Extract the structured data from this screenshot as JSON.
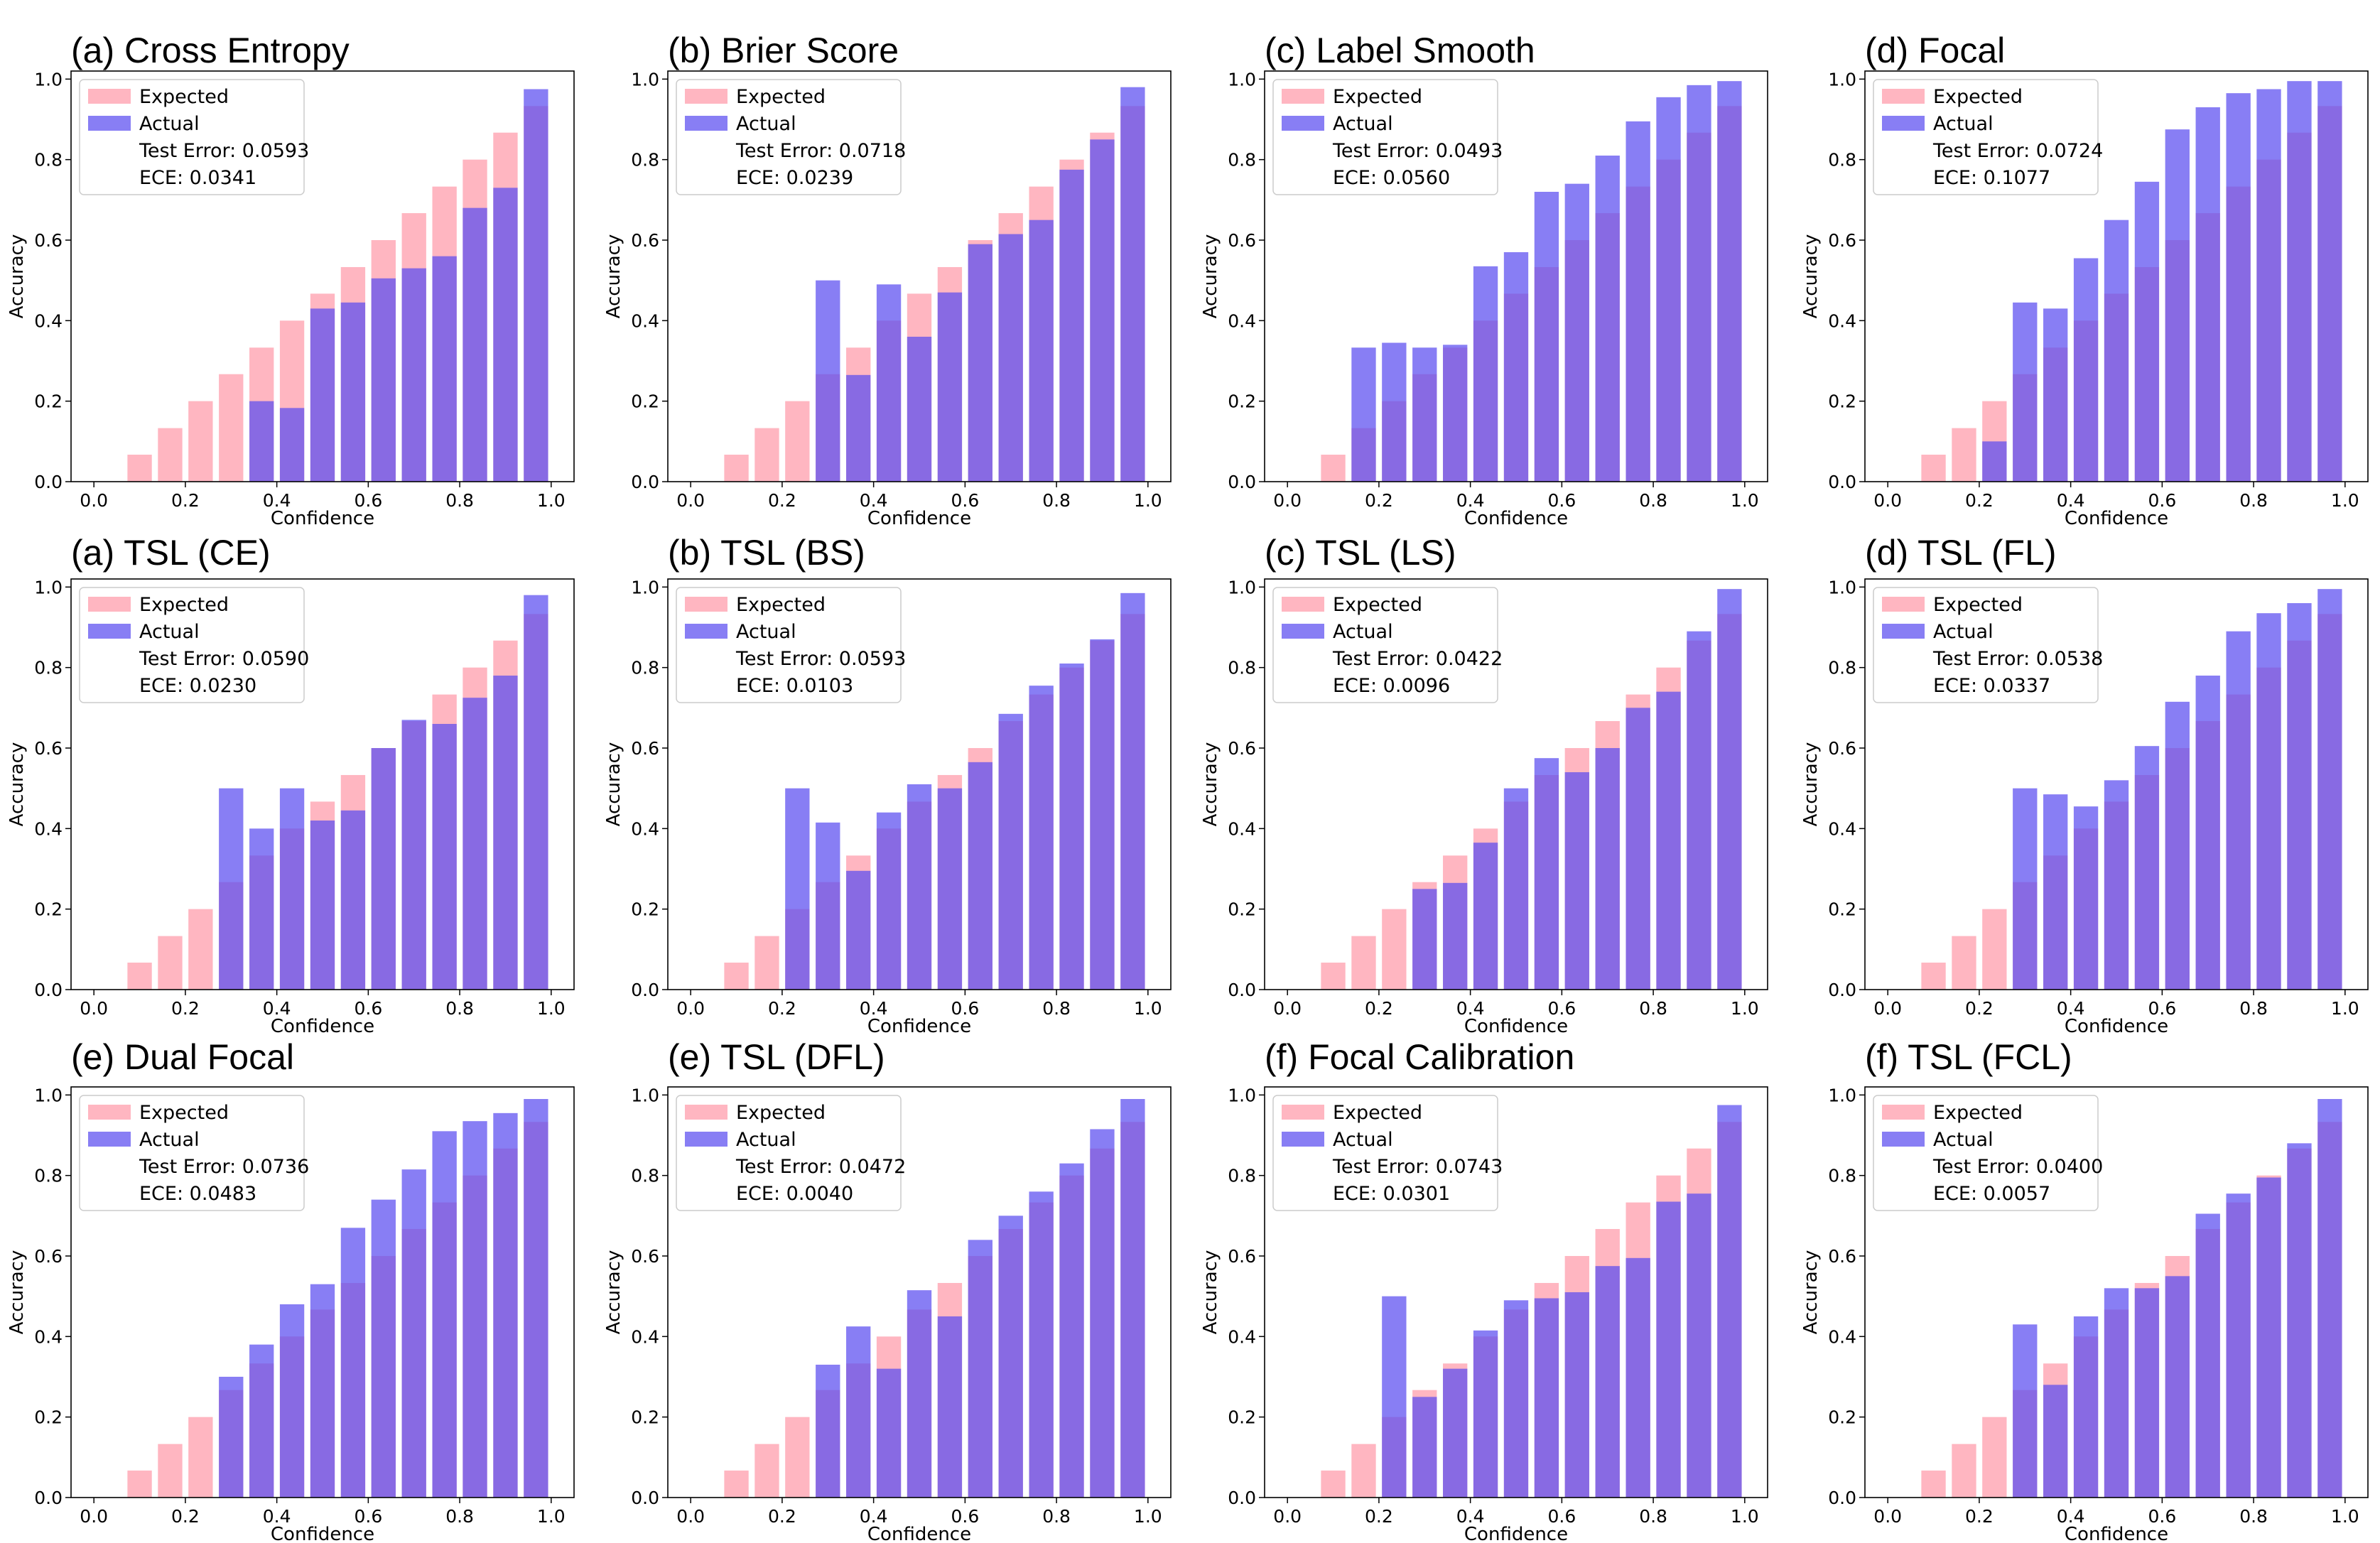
{
  "colors": {
    "expected": "#ffb6c1",
    "actual": "#5a4cf0",
    "axis": "#000000",
    "legend_border": "#cccccc"
  },
  "legend_labels": {
    "expected": "Expected",
    "actual": "Actual"
  },
  "chart_data": [
    {
      "type": "bar",
      "title": "(a) Cross Entropy",
      "xlabel": "Confidence",
      "ylabel": "Accuracy",
      "xlim": [
        -0.05,
        1.05
      ],
      "ylim": [
        0,
        1.02
      ],
      "xticks": [
        "0.0",
        "0.2",
        "0.4",
        "0.6",
        "0.8",
        "1.0"
      ],
      "yticks": [
        "0.0",
        "0.2",
        "0.4",
        "0.6",
        "0.8",
        "1.0"
      ],
      "bin_centers": [
        0.0333,
        0.1,
        0.1667,
        0.2333,
        0.3,
        0.3667,
        0.4333,
        0.5,
        0.5667,
        0.6333,
        0.7,
        0.7667,
        0.8333,
        0.9,
        0.9667
      ],
      "series": [
        {
          "name": "Expected",
          "values": [
            0.0,
            0.067,
            0.133,
            0.2,
            0.267,
            0.333,
            0.4,
            0.467,
            0.533,
            0.6,
            0.667,
            0.733,
            0.8,
            0.867,
            0.933
          ]
        },
        {
          "name": "Actual",
          "values": [
            0,
            0,
            0,
            0,
            0,
            0.2,
            0.183,
            0.43,
            0.445,
            0.505,
            0.53,
            0.56,
            0.68,
            0.73,
            0.975
          ]
        }
      ],
      "legend_stats": [
        "Test Error: 0.0593",
        "ECE: 0.0341"
      ]
    },
    {
      "type": "bar",
      "title": "(b) Brier Score",
      "xlabel": "Confidence",
      "ylabel": "Accuracy",
      "xlim": [
        -0.05,
        1.05
      ],
      "ylim": [
        0,
        1.02
      ],
      "xticks": [
        "0.0",
        "0.2",
        "0.4",
        "0.6",
        "0.8",
        "1.0"
      ],
      "yticks": [
        "0.0",
        "0.2",
        "0.4",
        "0.6",
        "0.8",
        "1.0"
      ],
      "bin_centers": [
        0.0333,
        0.1,
        0.1667,
        0.2333,
        0.3,
        0.3667,
        0.4333,
        0.5,
        0.5667,
        0.6333,
        0.7,
        0.7667,
        0.8333,
        0.9,
        0.9667
      ],
      "series": [
        {
          "name": "Expected",
          "values": [
            0.0,
            0.067,
            0.133,
            0.2,
            0.267,
            0.333,
            0.4,
            0.467,
            0.533,
            0.6,
            0.667,
            0.733,
            0.8,
            0.867,
            0.933
          ]
        },
        {
          "name": "Actual",
          "values": [
            0,
            0,
            0,
            0,
            0.5,
            0.265,
            0.49,
            0.36,
            0.47,
            0.59,
            0.615,
            0.65,
            0.775,
            0.85,
            0.98
          ]
        }
      ],
      "legend_stats": [
        "Test Error: 0.0718",
        "ECE: 0.0239"
      ]
    },
    {
      "type": "bar",
      "title": "(c) Label Smooth",
      "xlabel": "Confidence",
      "ylabel": "Accuracy",
      "xlim": [
        -0.05,
        1.05
      ],
      "ylim": [
        0,
        1.02
      ],
      "xticks": [
        "0.0",
        "0.2",
        "0.4",
        "0.6",
        "0.8",
        "1.0"
      ],
      "yticks": [
        "0.0",
        "0.2",
        "0.4",
        "0.6",
        "0.8",
        "1.0"
      ],
      "bin_centers": [
        0.0333,
        0.1,
        0.1667,
        0.2333,
        0.3,
        0.3667,
        0.4333,
        0.5,
        0.5667,
        0.6333,
        0.7,
        0.7667,
        0.8333,
        0.9,
        0.9667
      ],
      "series": [
        {
          "name": "Expected",
          "values": [
            0.0,
            0.067,
            0.133,
            0.2,
            0.267,
            0.333,
            0.4,
            0.467,
            0.533,
            0.6,
            0.667,
            0.733,
            0.8,
            0.867,
            0.933
          ]
        },
        {
          "name": "Actual",
          "values": [
            0,
            0,
            0.333,
            0.345,
            0.333,
            0.34,
            0.535,
            0.57,
            0.72,
            0.74,
            0.81,
            0.895,
            0.955,
            0.985,
            0.995
          ]
        }
      ],
      "legend_stats": [
        "Test Error: 0.0493",
        "ECE: 0.0560"
      ]
    },
    {
      "type": "bar",
      "title": "(d) Focal",
      "xlabel": "Confidence",
      "ylabel": "Accuracy",
      "xlim": [
        -0.05,
        1.05
      ],
      "ylim": [
        0,
        1.02
      ],
      "xticks": [
        "0.0",
        "0.2",
        "0.4",
        "0.6",
        "0.8",
        "1.0"
      ],
      "yticks": [
        "0.0",
        "0.2",
        "0.4",
        "0.6",
        "0.8",
        "1.0"
      ],
      "bin_centers": [
        0.0333,
        0.1,
        0.1667,
        0.2333,
        0.3,
        0.3667,
        0.4333,
        0.5,
        0.5667,
        0.6333,
        0.7,
        0.7667,
        0.8333,
        0.9,
        0.9667
      ],
      "series": [
        {
          "name": "Expected",
          "values": [
            0.0,
            0.067,
            0.133,
            0.2,
            0.267,
            0.333,
            0.4,
            0.467,
            0.533,
            0.6,
            0.667,
            0.733,
            0.8,
            0.867,
            0.933
          ]
        },
        {
          "name": "Actual",
          "values": [
            0,
            0,
            0,
            0.1,
            0.445,
            0.43,
            0.555,
            0.65,
            0.745,
            0.875,
            0.93,
            0.965,
            0.975,
            0.995,
            0.995
          ]
        }
      ],
      "legend_stats": [
        "Test Error: 0.0724",
        "ECE: 0.1077"
      ]
    },
    {
      "type": "bar",
      "title": "(a) TSL (CE)",
      "xlabel": "Confidence",
      "ylabel": "Accuracy",
      "xlim": [
        -0.05,
        1.05
      ],
      "ylim": [
        0,
        1.02
      ],
      "xticks": [
        "0.0",
        "0.2",
        "0.4",
        "0.6",
        "0.8",
        "1.0"
      ],
      "yticks": [
        "0.0",
        "0.2",
        "0.4",
        "0.6",
        "0.8",
        "1.0"
      ],
      "bin_centers": [
        0.0333,
        0.1,
        0.1667,
        0.2333,
        0.3,
        0.3667,
        0.4333,
        0.5,
        0.5667,
        0.6333,
        0.7,
        0.7667,
        0.8333,
        0.9,
        0.9667
      ],
      "series": [
        {
          "name": "Expected",
          "values": [
            0.0,
            0.067,
            0.133,
            0.2,
            0.267,
            0.333,
            0.4,
            0.467,
            0.533,
            0.6,
            0.667,
            0.733,
            0.8,
            0.867,
            0.933
          ]
        },
        {
          "name": "Actual",
          "values": [
            0,
            0,
            0,
            0,
            0.5,
            0.4,
            0.5,
            0.42,
            0.445,
            0.6,
            0.67,
            0.66,
            0.725,
            0.78,
            0.98
          ]
        }
      ],
      "legend_stats": [
        "Test Error: 0.0590",
        "ECE: 0.0230"
      ]
    },
    {
      "type": "bar",
      "title": "(b) TSL (BS)",
      "xlabel": "Confidence",
      "ylabel": "Accuracy",
      "xlim": [
        -0.05,
        1.05
      ],
      "ylim": [
        0,
        1.02
      ],
      "xticks": [
        "0.0",
        "0.2",
        "0.4",
        "0.6",
        "0.8",
        "1.0"
      ],
      "yticks": [
        "0.0",
        "0.2",
        "0.4",
        "0.6",
        "0.8",
        "1.0"
      ],
      "bin_centers": [
        0.0333,
        0.1,
        0.1667,
        0.2333,
        0.3,
        0.3667,
        0.4333,
        0.5,
        0.5667,
        0.6333,
        0.7,
        0.7667,
        0.8333,
        0.9,
        0.9667
      ],
      "series": [
        {
          "name": "Expected",
          "values": [
            0.0,
            0.067,
            0.133,
            0.2,
            0.267,
            0.333,
            0.4,
            0.467,
            0.533,
            0.6,
            0.667,
            0.733,
            0.8,
            0.867,
            0.933
          ]
        },
        {
          "name": "Actual",
          "values": [
            0,
            0,
            0,
            0.5,
            0.415,
            0.295,
            0.44,
            0.51,
            0.5,
            0.565,
            0.685,
            0.755,
            0.81,
            0.87,
            0.985
          ]
        }
      ],
      "legend_stats": [
        "Test Error: 0.0593",
        "ECE: 0.0103"
      ]
    },
    {
      "type": "bar",
      "title": "(c) TSL (LS)",
      "xlabel": "Confidence",
      "ylabel": "Accuracy",
      "xlim": [
        -0.05,
        1.05
      ],
      "ylim": [
        0,
        1.02
      ],
      "xticks": [
        "0.0",
        "0.2",
        "0.4",
        "0.6",
        "0.8",
        "1.0"
      ],
      "yticks": [
        "0.0",
        "0.2",
        "0.4",
        "0.6",
        "0.8",
        "1.0"
      ],
      "bin_centers": [
        0.0333,
        0.1,
        0.1667,
        0.2333,
        0.3,
        0.3667,
        0.4333,
        0.5,
        0.5667,
        0.6333,
        0.7,
        0.7667,
        0.8333,
        0.9,
        0.9667
      ],
      "series": [
        {
          "name": "Expected",
          "values": [
            0.0,
            0.067,
            0.133,
            0.2,
            0.267,
            0.333,
            0.4,
            0.467,
            0.533,
            0.6,
            0.667,
            0.733,
            0.8,
            0.867,
            0.933
          ]
        },
        {
          "name": "Actual",
          "values": [
            0,
            0,
            0,
            0,
            0.25,
            0.265,
            0.365,
            0.5,
            0.575,
            0.54,
            0.6,
            0.7,
            0.74,
            0.89,
            0.995
          ]
        }
      ],
      "legend_stats": [
        "Test Error: 0.0422",
        "ECE: 0.0096"
      ]
    },
    {
      "type": "bar",
      "title": "(d) TSL (FL)",
      "xlabel": "Confidence",
      "ylabel": "Accuracy",
      "xlim": [
        -0.05,
        1.05
      ],
      "ylim": [
        0,
        1.02
      ],
      "xticks": [
        "0.0",
        "0.2",
        "0.4",
        "0.6",
        "0.8",
        "1.0"
      ],
      "yticks": [
        "0.0",
        "0.2",
        "0.4",
        "0.6",
        "0.8",
        "1.0"
      ],
      "bin_centers": [
        0.0333,
        0.1,
        0.1667,
        0.2333,
        0.3,
        0.3667,
        0.4333,
        0.5,
        0.5667,
        0.6333,
        0.7,
        0.7667,
        0.8333,
        0.9,
        0.9667
      ],
      "series": [
        {
          "name": "Expected",
          "values": [
            0.0,
            0.067,
            0.133,
            0.2,
            0.267,
            0.333,
            0.4,
            0.467,
            0.533,
            0.6,
            0.667,
            0.733,
            0.8,
            0.867,
            0.933
          ]
        },
        {
          "name": "Actual",
          "values": [
            0,
            0,
            0,
            0,
            0.5,
            0.485,
            0.455,
            0.52,
            0.605,
            0.715,
            0.78,
            0.89,
            0.935,
            0.96,
            0.995
          ]
        }
      ],
      "legend_stats": [
        "Test Error: 0.0538",
        "ECE: 0.0337"
      ]
    },
    {
      "type": "bar",
      "title": "(e) Dual Focal",
      "xlabel": "Confidence",
      "ylabel": "Accuracy",
      "xlim": [
        -0.05,
        1.05
      ],
      "ylim": [
        0,
        1.02
      ],
      "xticks": [
        "0.0",
        "0.2",
        "0.4",
        "0.6",
        "0.8",
        "1.0"
      ],
      "yticks": [
        "0.0",
        "0.2",
        "0.4",
        "0.6",
        "0.8",
        "1.0"
      ],
      "bin_centers": [
        0.0333,
        0.1,
        0.1667,
        0.2333,
        0.3,
        0.3667,
        0.4333,
        0.5,
        0.5667,
        0.6333,
        0.7,
        0.7667,
        0.8333,
        0.9,
        0.9667
      ],
      "series": [
        {
          "name": "Expected",
          "values": [
            0.0,
            0.067,
            0.133,
            0.2,
            0.267,
            0.333,
            0.4,
            0.467,
            0.533,
            0.6,
            0.667,
            0.733,
            0.8,
            0.867,
            0.933
          ]
        },
        {
          "name": "Actual",
          "values": [
            0,
            0,
            0,
            0,
            0.3,
            0.38,
            0.48,
            0.53,
            0.67,
            0.74,
            0.815,
            0.91,
            0.935,
            0.955,
            0.99
          ]
        }
      ],
      "legend_stats": [
        "Test Error: 0.0736",
        "ECE: 0.0483"
      ]
    },
    {
      "type": "bar",
      "title": "(e) TSL (DFL)",
      "xlabel": "Confidence",
      "ylabel": "Accuracy",
      "xlim": [
        -0.05,
        1.05
      ],
      "ylim": [
        0,
        1.02
      ],
      "xticks": [
        "0.0",
        "0.2",
        "0.4",
        "0.6",
        "0.8",
        "1.0"
      ],
      "yticks": [
        "0.0",
        "0.2",
        "0.4",
        "0.6",
        "0.8",
        "1.0"
      ],
      "bin_centers": [
        0.0333,
        0.1,
        0.1667,
        0.2333,
        0.3,
        0.3667,
        0.4333,
        0.5,
        0.5667,
        0.6333,
        0.7,
        0.7667,
        0.8333,
        0.9,
        0.9667
      ],
      "series": [
        {
          "name": "Expected",
          "values": [
            0.0,
            0.067,
            0.133,
            0.2,
            0.267,
            0.333,
            0.4,
            0.467,
            0.533,
            0.6,
            0.667,
            0.733,
            0.8,
            0.867,
            0.933
          ]
        },
        {
          "name": "Actual",
          "values": [
            0,
            0,
            0,
            0,
            0.33,
            0.425,
            0.32,
            0.515,
            0.45,
            0.64,
            0.7,
            0.76,
            0.83,
            0.915,
            0.99
          ]
        }
      ],
      "legend_stats": [
        "Test Error: 0.0472",
        "ECE: 0.0040"
      ]
    },
    {
      "type": "bar",
      "title": "(f) Focal Calibration",
      "xlabel": "Confidence",
      "ylabel": "Accuracy",
      "xlim": [
        -0.05,
        1.05
      ],
      "ylim": [
        0,
        1.02
      ],
      "xticks": [
        "0.0",
        "0.2",
        "0.4",
        "0.6",
        "0.8",
        "1.0"
      ],
      "yticks": [
        "0.0",
        "0.2",
        "0.4",
        "0.6",
        "0.8",
        "1.0"
      ],
      "bin_centers": [
        0.0333,
        0.1,
        0.1667,
        0.2333,
        0.3,
        0.3667,
        0.4333,
        0.5,
        0.5667,
        0.6333,
        0.7,
        0.7667,
        0.8333,
        0.9,
        0.9667
      ],
      "series": [
        {
          "name": "Expected",
          "values": [
            0.0,
            0.067,
            0.133,
            0.2,
            0.267,
            0.333,
            0.4,
            0.467,
            0.533,
            0.6,
            0.667,
            0.733,
            0.8,
            0.867,
            0.933
          ]
        },
        {
          "name": "Actual",
          "values": [
            0,
            0,
            0,
            0.5,
            0.25,
            0.32,
            0.415,
            0.49,
            0.495,
            0.51,
            0.575,
            0.595,
            0.735,
            0.755,
            0.975
          ]
        }
      ],
      "legend_stats": [
        "Test Error: 0.0743",
        "ECE: 0.0301"
      ]
    },
    {
      "type": "bar",
      "title": "(f) TSL (FCL)",
      "xlabel": "Confidence",
      "ylabel": "Accuracy",
      "xlim": [
        -0.05,
        1.05
      ],
      "ylim": [
        0,
        1.02
      ],
      "xticks": [
        "0.0",
        "0.2",
        "0.4",
        "0.6",
        "0.8",
        "1.0"
      ],
      "yticks": [
        "0.0",
        "0.2",
        "0.4",
        "0.6",
        "0.8",
        "1.0"
      ],
      "bin_centers": [
        0.0333,
        0.1,
        0.1667,
        0.2333,
        0.3,
        0.3667,
        0.4333,
        0.5,
        0.5667,
        0.6333,
        0.7,
        0.7667,
        0.8333,
        0.9,
        0.9667
      ],
      "series": [
        {
          "name": "Expected",
          "values": [
            0.0,
            0.067,
            0.133,
            0.2,
            0.267,
            0.333,
            0.4,
            0.467,
            0.533,
            0.6,
            0.667,
            0.733,
            0.8,
            0.867,
            0.933
          ]
        },
        {
          "name": "Actual",
          "values": [
            0,
            0,
            0,
            0,
            0.43,
            0.28,
            0.45,
            0.52,
            0.52,
            0.55,
            0.705,
            0.755,
            0.795,
            0.88,
            0.99
          ]
        }
      ],
      "legend_stats": [
        "Test Error: 0.0400",
        "ECE: 0.0057"
      ]
    }
  ]
}
